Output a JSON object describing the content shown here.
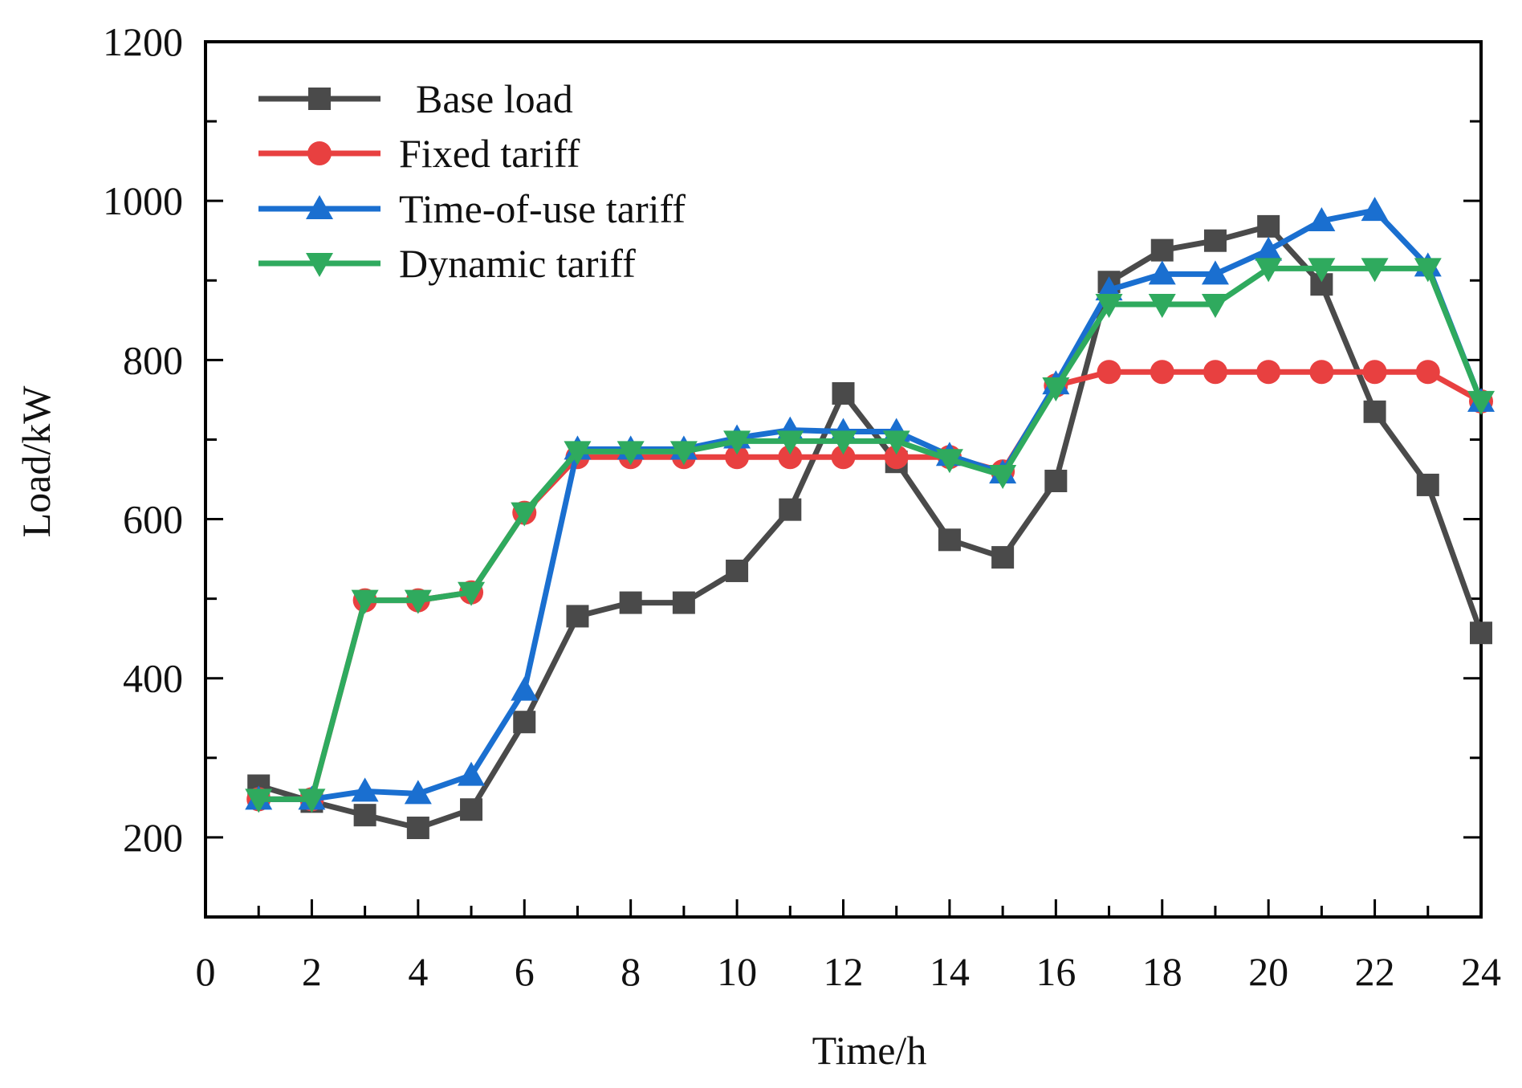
{
  "chart_data": {
    "type": "line",
    "title": "",
    "xlabel": "Time/h",
    "ylabel": "Load/kW",
    "xlim": [
      0,
      24
    ],
    "ylim": [
      100,
      1200
    ],
    "xticks": [
      0,
      2,
      4,
      6,
      8,
      10,
      12,
      14,
      16,
      18,
      20,
      22,
      24
    ],
    "yticks": [
      200,
      400,
      600,
      800,
      1000,
      1200
    ],
    "legend_position": "top-left",
    "grid": false,
    "x": [
      1,
      2,
      3,
      4,
      5,
      6,
      7,
      8,
      9,
      10,
      11,
      12,
      13,
      14,
      15,
      16,
      17,
      18,
      19,
      20,
      21,
      22,
      23,
      24
    ],
    "series": [
      {
        "name": "Base load",
        "color": "#4a4a4a",
        "marker": "square",
        "values": [
          265,
          245,
          228,
          212,
          235,
          345,
          478,
          495,
          495,
          535,
          612,
          758,
          672,
          574,
          552,
          648,
          898,
          938,
          950,
          968,
          895,
          735,
          643,
          457
        ]
      },
      {
        "name": "Fixed tariff",
        "color": "#e84040",
        "marker": "circle",
        "values": [
          248,
          248,
          498,
          498,
          508,
          608,
          678,
          678,
          678,
          678,
          678,
          678,
          678,
          678,
          660,
          768,
          785,
          785,
          785,
          785,
          785,
          785,
          785,
          748
        ]
      },
      {
        "name": "Time-of-use tariff",
        "color": "#1a6fd0",
        "marker": "triangle-up",
        "values": [
          248,
          248,
          258,
          255,
          278,
          385,
          688,
          688,
          688,
          702,
          712,
          710,
          710,
          680,
          658,
          770,
          888,
          908,
          908,
          938,
          975,
          988,
          918,
          748
        ]
      },
      {
        "name": "Dynamic tariff",
        "color": "#2faa5e",
        "marker": "triangle-down",
        "values": [
          248,
          248,
          498,
          498,
          508,
          608,
          685,
          685,
          685,
          698,
          698,
          698,
          698,
          675,
          655,
          765,
          870,
          870,
          870,
          915,
          915,
          915,
          915,
          748
        ]
      }
    ]
  }
}
